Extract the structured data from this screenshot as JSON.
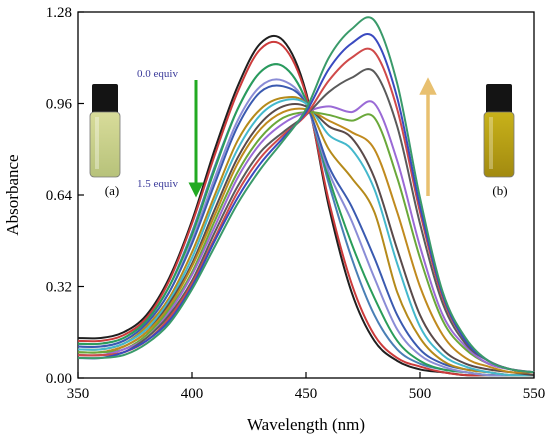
{
  "chart_data": {
    "type": "line",
    "xlabel": "Wavelength (nm)",
    "ylabel": "Absorbance",
    "xlim": [
      350,
      550
    ],
    "ylim": [
      0,
      1.28
    ],
    "xticks": [
      "350",
      "400",
      "450",
      "500",
      "550"
    ],
    "yticks": [
      "0.00",
      "0.32",
      "0.64",
      "0.96",
      "1.28"
    ],
    "grid": false,
    "annotations": {
      "start_label": "0.0 equiv",
      "end_label": "1.5 equiv",
      "vial_a": "(a)",
      "vial_b": "(b)",
      "decrease_arrow_color": "#22aa22",
      "increase_arrow_color": "#e8c070",
      "note_color": "#3a3a9a"
    },
    "x": [
      350,
      360,
      370,
      380,
      390,
      400,
      410,
      420,
      430,
      440,
      450,
      460,
      470,
      480,
      490,
      500,
      510,
      520,
      530,
      540,
      550
    ],
    "series": [
      {
        "color": "#1f1f1f",
        "values": [
          0.14,
          0.14,
          0.16,
          0.22,
          0.35,
          0.55,
          0.8,
          1.02,
          1.17,
          1.18,
          1.0,
          0.6,
          0.3,
          0.13,
          0.06,
          0.03,
          0.02,
          0.01,
          0.01,
          0.01,
          0.01
        ]
      },
      {
        "color": "#cc3b3b",
        "values": [
          0.13,
          0.13,
          0.15,
          0.21,
          0.34,
          0.54,
          0.78,
          1.0,
          1.15,
          1.16,
          0.99,
          0.62,
          0.33,
          0.15,
          0.07,
          0.04,
          0.02,
          0.01,
          0.01,
          0.01,
          0.01
        ]
      },
      {
        "color": "#4a7fb5",
        "values": [
          0.12,
          0.12,
          0.14,
          0.2,
          0.32,
          0.51,
          0.74,
          0.94,
          1.07,
          1.09,
          0.97,
          0.68,
          0.42,
          0.22,
          0.1,
          0.05,
          0.03,
          0.02,
          0.01,
          0.01,
          0.01
        ]
      },
      {
        "color": "#2a9d5a",
        "values": [
          0.12,
          0.12,
          0.14,
          0.2,
          0.32,
          0.5,
          0.73,
          0.94,
          1.07,
          1.09,
          0.97,
          0.7,
          0.47,
          0.28,
          0.13,
          0.06,
          0.03,
          0.02,
          0.01,
          0.01,
          0.01
        ]
      },
      {
        "color": "#8a8cd6",
        "values": [
          0.11,
          0.11,
          0.13,
          0.19,
          0.3,
          0.48,
          0.7,
          0.9,
          1.02,
          1.04,
          0.96,
          0.72,
          0.55,
          0.35,
          0.17,
          0.08,
          0.04,
          0.02,
          0.01,
          0.01,
          0.01
        ]
      },
      {
        "color": "#3a5ab0",
        "values": [
          0.11,
          0.11,
          0.13,
          0.19,
          0.3,
          0.47,
          0.68,
          0.88,
          1.0,
          1.02,
          0.96,
          0.74,
          0.6,
          0.42,
          0.22,
          0.1,
          0.05,
          0.03,
          0.02,
          0.01,
          0.01
        ]
      },
      {
        "color": "#b58a1a",
        "values": [
          0.1,
          0.1,
          0.12,
          0.18,
          0.28,
          0.44,
          0.64,
          0.83,
          0.94,
          0.98,
          0.96,
          0.8,
          0.7,
          0.58,
          0.3,
          0.14,
          0.06,
          0.03,
          0.02,
          0.01,
          0.01
        ]
      },
      {
        "color": "#44b8cc",
        "values": [
          0.1,
          0.1,
          0.12,
          0.17,
          0.27,
          0.42,
          0.62,
          0.8,
          0.92,
          0.97,
          0.96,
          0.85,
          0.8,
          0.66,
          0.4,
          0.18,
          0.08,
          0.04,
          0.02,
          0.01,
          0.01
        ]
      },
      {
        "color": "#5a4a4a",
        "values": [
          0.09,
          0.09,
          0.11,
          0.16,
          0.26,
          0.4,
          0.59,
          0.77,
          0.89,
          0.95,
          0.95,
          0.88,
          0.84,
          0.7,
          0.45,
          0.22,
          0.1,
          0.05,
          0.03,
          0.02,
          0.01
        ]
      },
      {
        "color": "#c08a1e",
        "values": [
          0.09,
          0.09,
          0.11,
          0.16,
          0.25,
          0.39,
          0.57,
          0.75,
          0.87,
          0.93,
          0.94,
          0.9,
          0.86,
          0.8,
          0.58,
          0.32,
          0.15,
          0.07,
          0.04,
          0.02,
          0.02
        ]
      },
      {
        "color": "#6aa83a",
        "values": [
          0.09,
          0.09,
          0.1,
          0.15,
          0.24,
          0.37,
          0.55,
          0.72,
          0.84,
          0.91,
          0.93,
          0.92,
          0.9,
          0.91,
          0.7,
          0.42,
          0.2,
          0.1,
          0.05,
          0.03,
          0.02
        ]
      },
      {
        "color": "#9a6ad6",
        "values": [
          0.08,
          0.08,
          0.1,
          0.14,
          0.23,
          0.36,
          0.53,
          0.7,
          0.82,
          0.89,
          0.93,
          0.95,
          0.93,
          0.96,
          0.76,
          0.46,
          0.22,
          0.11,
          0.05,
          0.03,
          0.02
        ]
      },
      {
        "color": "#5a5a5a",
        "values": [
          0.08,
          0.08,
          0.09,
          0.14,
          0.22,
          0.34,
          0.51,
          0.67,
          0.79,
          0.86,
          0.92,
          1.0,
          1.05,
          1.07,
          0.88,
          0.54,
          0.26,
          0.12,
          0.06,
          0.03,
          0.02
        ]
      },
      {
        "color": "#d04a4a",
        "values": [
          0.08,
          0.08,
          0.09,
          0.13,
          0.21,
          0.33,
          0.49,
          0.65,
          0.77,
          0.85,
          0.92,
          1.04,
          1.12,
          1.14,
          0.94,
          0.58,
          0.28,
          0.13,
          0.06,
          0.03,
          0.02
        ]
      },
      {
        "color": "#3a4ac0",
        "values": [
          0.07,
          0.07,
          0.09,
          0.13,
          0.2,
          0.32,
          0.48,
          0.63,
          0.75,
          0.84,
          0.93,
          1.08,
          1.17,
          1.19,
          0.98,
          0.6,
          0.29,
          0.13,
          0.06,
          0.03,
          0.02
        ]
      },
      {
        "color": "#3a9a6a",
        "values": [
          0.07,
          0.07,
          0.08,
          0.12,
          0.19,
          0.31,
          0.46,
          0.61,
          0.73,
          0.83,
          0.94,
          1.12,
          1.22,
          1.25,
          1.03,
          0.63,
          0.3,
          0.14,
          0.06,
          0.03,
          0.02
        ]
      }
    ]
  }
}
